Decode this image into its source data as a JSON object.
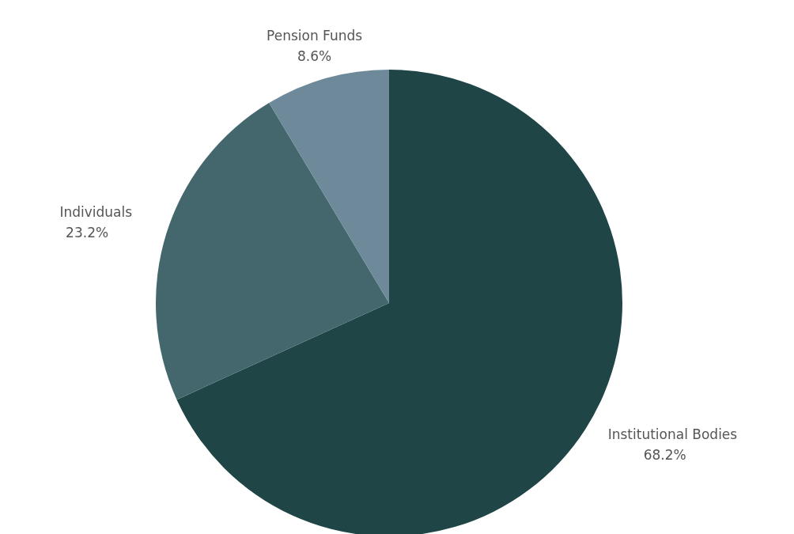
{
  "chart_data": {
    "type": "pie",
    "categories": [
      "Institutional Bodies",
      "Individuals",
      "Pension Funds"
    ],
    "values": [
      68.2,
      23.2,
      8.6
    ],
    "colors": [
      "#1f4547",
      "#44676e",
      "#6e8a9a"
    ],
    "value_labels": [
      "68.2%",
      "23.2%",
      "8.6%"
    ]
  }
}
